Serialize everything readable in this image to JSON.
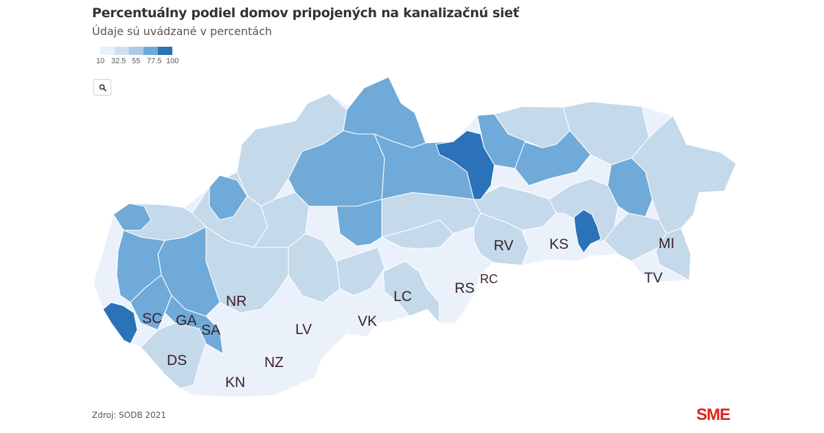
{
  "header": {
    "title": "Percentuálny podiel domov pripojených na kanalizačnú sieť",
    "subtitle": "Údaje sú uvádzané v percentách"
  },
  "legend": {
    "ticks": [
      "10",
      "32.5",
      "55",
      "77.5",
      "100"
    ],
    "colors": [
      "#e9f0fb",
      "#cfdff0",
      "#aacbe6",
      "#6fa9d8",
      "#2b72b8"
    ]
  },
  "toolbar": {
    "search_icon": "search-icon"
  },
  "map": {
    "region_colors": {
      "very_light": "#eaf1fb",
      "light": "#c4d9ea",
      "mid_light": "#a6c8e4",
      "mid": "#6faad8",
      "dark": "#2b72b8"
    },
    "district_labels": [
      "SC",
      "GA",
      "SA",
      "DS",
      "NR",
      "LV",
      "NZ",
      "KN",
      "VK",
      "LC",
      "RS",
      "RC",
      "RV",
      "KS",
      "MI",
      "TV"
    ]
  },
  "footer": {
    "source": "Zdroj: SODB 2021",
    "brand": "SME",
    "brand_color": "#e2231a"
  }
}
